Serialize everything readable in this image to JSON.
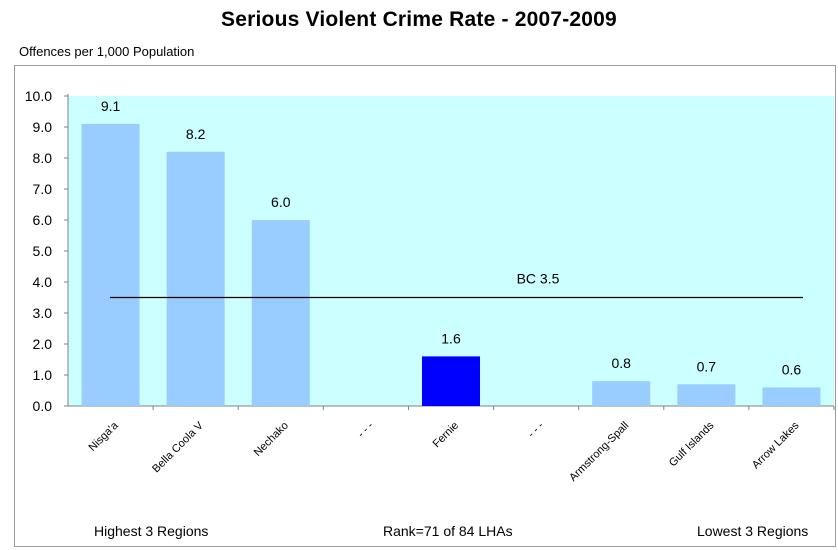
{
  "chart_data": {
    "type": "bar",
    "title": "Serious Violent Crime Rate - 2007-2009",
    "ylabel": "Offences per 1,000 Population",
    "ylim": [
      0,
      10
    ],
    "yticks": [
      "0.0",
      "1.0",
      "2.0",
      "3.0",
      "4.0",
      "5.0",
      "6.0",
      "7.0",
      "8.0",
      "9.0",
      "10.0"
    ],
    "categories": [
      "Nisga'a",
      "Bella Coola V",
      "Nechako",
      "- - -",
      "Fernie",
      "- - -",
      "Armstrong-Spall",
      "Gulf Islands",
      "Arrow Lakes"
    ],
    "values": [
      9.1,
      8.2,
      6.0,
      null,
      1.6,
      null,
      0.8,
      0.7,
      0.6
    ],
    "value_labels": [
      "9.1",
      "8.2",
      "6.0",
      "",
      "1.6",
      "",
      "0.8",
      "0.7",
      "0.6"
    ],
    "highlight_index": 4,
    "reference_line": {
      "label": "BC 3.5",
      "value": 3.5
    },
    "colors": {
      "bar": "#99ccff",
      "highlight": "#0000ff",
      "plot_bg": "#ccffff",
      "line": "#000000"
    },
    "footer": {
      "left": "Highest 3 Regions",
      "center": "Rank=71 of 84 LHAs",
      "right": "Lowest 3 Regions"
    }
  }
}
